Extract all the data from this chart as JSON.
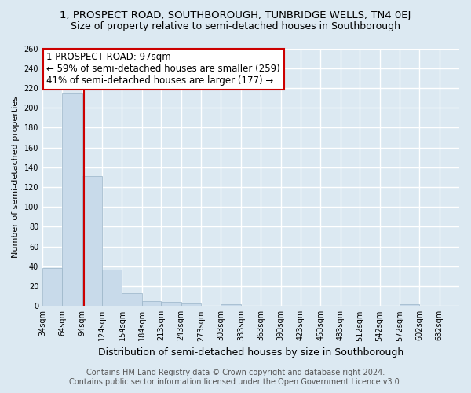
{
  "title": "1, PROSPECT ROAD, SOUTHBOROUGH, TUNBRIDGE WELLS, TN4 0EJ",
  "subtitle": "Size of property relative to semi-detached houses in Southborough",
  "xlabel": "Distribution of semi-detached houses by size in Southborough",
  "ylabel": "Number of semi-detached properties",
  "footer1": "Contains HM Land Registry data © Crown copyright and database right 2024.",
  "footer2": "Contains public sector information licensed under the Open Government Licence v3.0.",
  "bar_left_edges": [
    34,
    64,
    94,
    124,
    154,
    184,
    213,
    243,
    273,
    303,
    333,
    363,
    393,
    423,
    453,
    483,
    512,
    542,
    572,
    602
  ],
  "bar_widths": [
    30,
    30,
    30,
    30,
    30,
    29,
    30,
    30,
    30,
    30,
    30,
    30,
    30,
    30,
    30,
    29,
    30,
    30,
    30,
    30
  ],
  "bar_heights": [
    38,
    215,
    131,
    37,
    13,
    5,
    4,
    3,
    0,
    2,
    0,
    0,
    0,
    0,
    0,
    0,
    0,
    0,
    2,
    0
  ],
  "bar_color": "#c8daea",
  "bar_edge_color": "#9ab4c8",
  "property_size": 97,
  "vline_color": "#cc0000",
  "annotation_line1": "1 PROSPECT ROAD: 97sqm",
  "annotation_line2": "← 59% of semi-detached houses are smaller (259)",
  "annotation_line3": "41% of semi-detached houses are larger (177) →",
  "annotation_box_color": "#ffffff",
  "annotation_box_edge": "#cc0000",
  "ylim": [
    0,
    260
  ],
  "yticks": [
    0,
    20,
    40,
    60,
    80,
    100,
    120,
    140,
    160,
    180,
    200,
    220,
    240,
    260
  ],
  "xtick_labels": [
    "34sqm",
    "64sqm",
    "94sqm",
    "124sqm",
    "154sqm",
    "184sqm",
    "213sqm",
    "243sqm",
    "273sqm",
    "303sqm",
    "333sqm",
    "363sqm",
    "393sqm",
    "423sqm",
    "453sqm",
    "483sqm",
    "512sqm",
    "542sqm",
    "572sqm",
    "602sqm",
    "632sqm"
  ],
  "xtick_positions": [
    34,
    64,
    94,
    124,
    154,
    184,
    213,
    243,
    273,
    303,
    333,
    363,
    393,
    423,
    453,
    483,
    512,
    542,
    572,
    602,
    632
  ],
  "background_color": "#dce9f2",
  "plot_bg_color": "#dce9f2",
  "grid_color": "#ffffff",
  "title_fontsize": 9.5,
  "subtitle_fontsize": 9,
  "ylabel_fontsize": 8,
  "xlabel_fontsize": 9,
  "tick_fontsize": 7,
  "footer_fontsize": 7,
  "annotation_fontsize": 8.5
}
